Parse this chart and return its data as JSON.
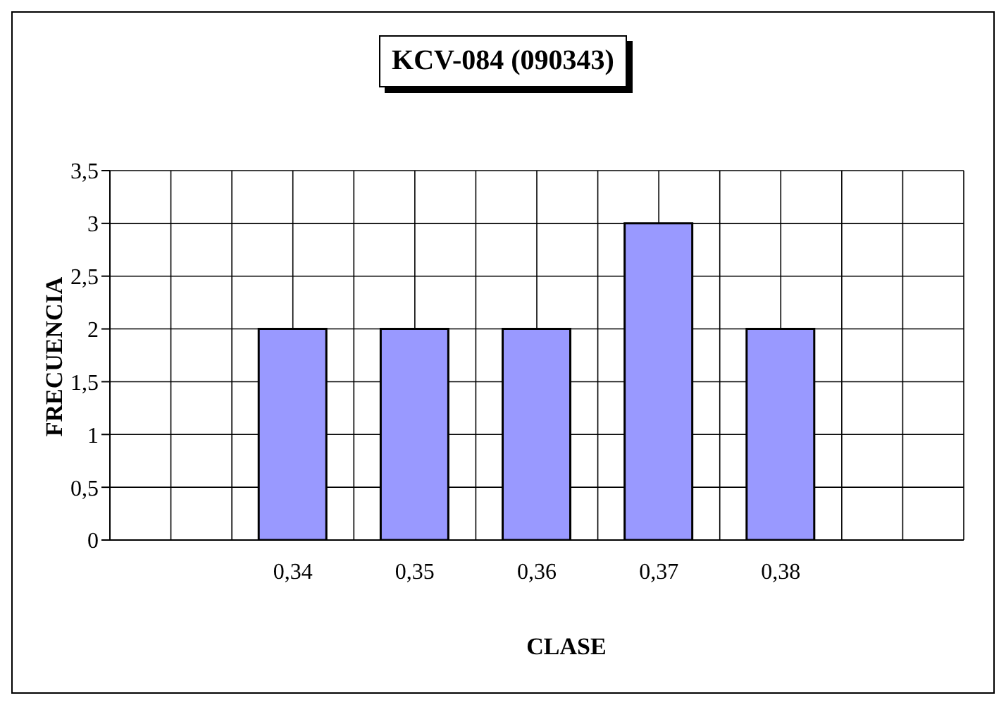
{
  "chart_data": {
    "type": "bar",
    "title": "KCV-084 (090343)",
    "xlabel": "CLASE",
    "ylabel": "FRECUENCIA",
    "categories": [
      null,
      "0,34",
      "0,35",
      "0,36",
      "0,37",
      "0,38",
      null
    ],
    "values": [
      null,
      2,
      2,
      2,
      3,
      2,
      null
    ],
    "color": "#9999ff",
    "ylim": [
      0,
      3.5
    ],
    "yticks": [
      0,
      {
        "value": 0.5,
        "label": "0,5"
      },
      1,
      {
        "value": 1.5,
        "label": "1,5"
      },
      2,
      {
        "value": 2.5,
        "label": "2,5"
      },
      3,
      {
        "value": 3.5,
        "label": "3,5"
      }
    ],
    "grid": true,
    "legend": false
  }
}
